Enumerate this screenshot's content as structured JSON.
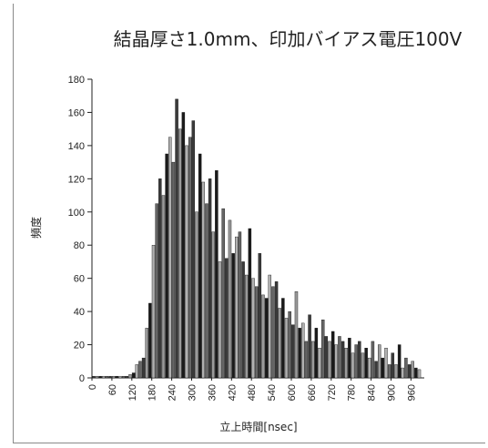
{
  "chart_data": {
    "type": "bar",
    "title": "結晶厚さ1.0mm、印加バイアス電圧100V",
    "xlabel": "立上時間[nsec]",
    "ylabel": "頻度",
    "xlim": [
      0,
      1000
    ],
    "ylim": [
      0,
      180
    ],
    "x_ticks": [
      0,
      60,
      120,
      180,
      240,
      300,
      360,
      420,
      480,
      540,
      600,
      660,
      720,
      780,
      840,
      900,
      960
    ],
    "y_ticks": [
      0,
      20,
      40,
      60,
      80,
      100,
      120,
      140,
      160,
      180
    ],
    "bin_width": 10,
    "grid": false,
    "legend": "none",
    "x": [
      0,
      10,
      20,
      30,
      40,
      50,
      60,
      70,
      80,
      90,
      100,
      110,
      120,
      130,
      140,
      150,
      160,
      170,
      180,
      190,
      200,
      210,
      220,
      230,
      240,
      250,
      260,
      270,
      280,
      290,
      300,
      310,
      320,
      330,
      340,
      350,
      360,
      370,
      380,
      390,
      400,
      410,
      420,
      430,
      440,
      450,
      460,
      470,
      480,
      490,
      500,
      510,
      520,
      530,
      540,
      550,
      560,
      570,
      580,
      590,
      600,
      610,
      620,
      630,
      640,
      650,
      660,
      670,
      680,
      690,
      700,
      710,
      720,
      730,
      740,
      750,
      760,
      770,
      780,
      790,
      800,
      810,
      820,
      830,
      840,
      850,
      860,
      870,
      880,
      890,
      900,
      910,
      920,
      930,
      940,
      950,
      960,
      970,
      980
    ],
    "values": [
      1,
      1,
      1,
      1,
      1,
      1,
      1,
      1,
      1,
      1,
      1,
      2,
      3,
      8,
      10,
      12,
      30,
      45,
      80,
      105,
      120,
      110,
      135,
      145,
      130,
      168,
      150,
      160,
      140,
      145,
      155,
      100,
      135,
      118,
      105,
      120,
      88,
      125,
      70,
      102,
      72,
      95,
      75,
      85,
      88,
      70,
      62,
      90,
      60,
      55,
      75,
      50,
      48,
      62,
      55,
      58,
      42,
      48,
      36,
      40,
      32,
      52,
      30,
      33,
      22,
      38,
      22,
      30,
      18,
      35,
      25,
      22,
      28,
      20,
      25,
      22,
      18,
      24,
      15,
      20,
      22,
      15,
      18,
      12,
      22,
      10,
      20,
      12,
      18,
      8,
      15,
      8,
      20,
      6,
      12,
      8,
      10,
      6,
      5
    ]
  }
}
